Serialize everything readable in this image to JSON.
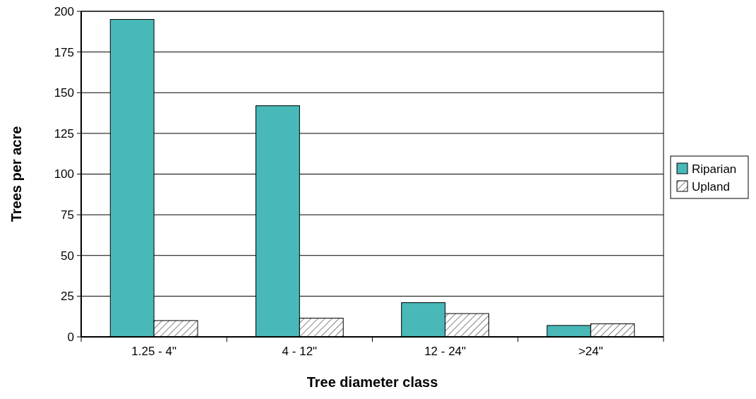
{
  "chart_data": {
    "type": "bar",
    "xlabel": "Tree diameter class",
    "ylabel": "Trees per acre",
    "categories": [
      "1.25 - 4\"",
      "4 - 12\"",
      "12 - 24\"",
      ">24\""
    ],
    "series": [
      {
        "name": "Riparian",
        "color": "#48b8b8",
        "values": [
          195,
          142,
          21,
          7
        ]
      },
      {
        "name": "Upland",
        "color": "#000000",
        "values": [
          10,
          11.5,
          14.3,
          8
        ]
      }
    ],
    "ylim": [
      0,
      200
    ],
    "yticks": [
      0,
      25,
      50,
      75,
      100,
      125,
      150,
      175,
      200
    ],
    "grid": "y",
    "legend": "right"
  }
}
